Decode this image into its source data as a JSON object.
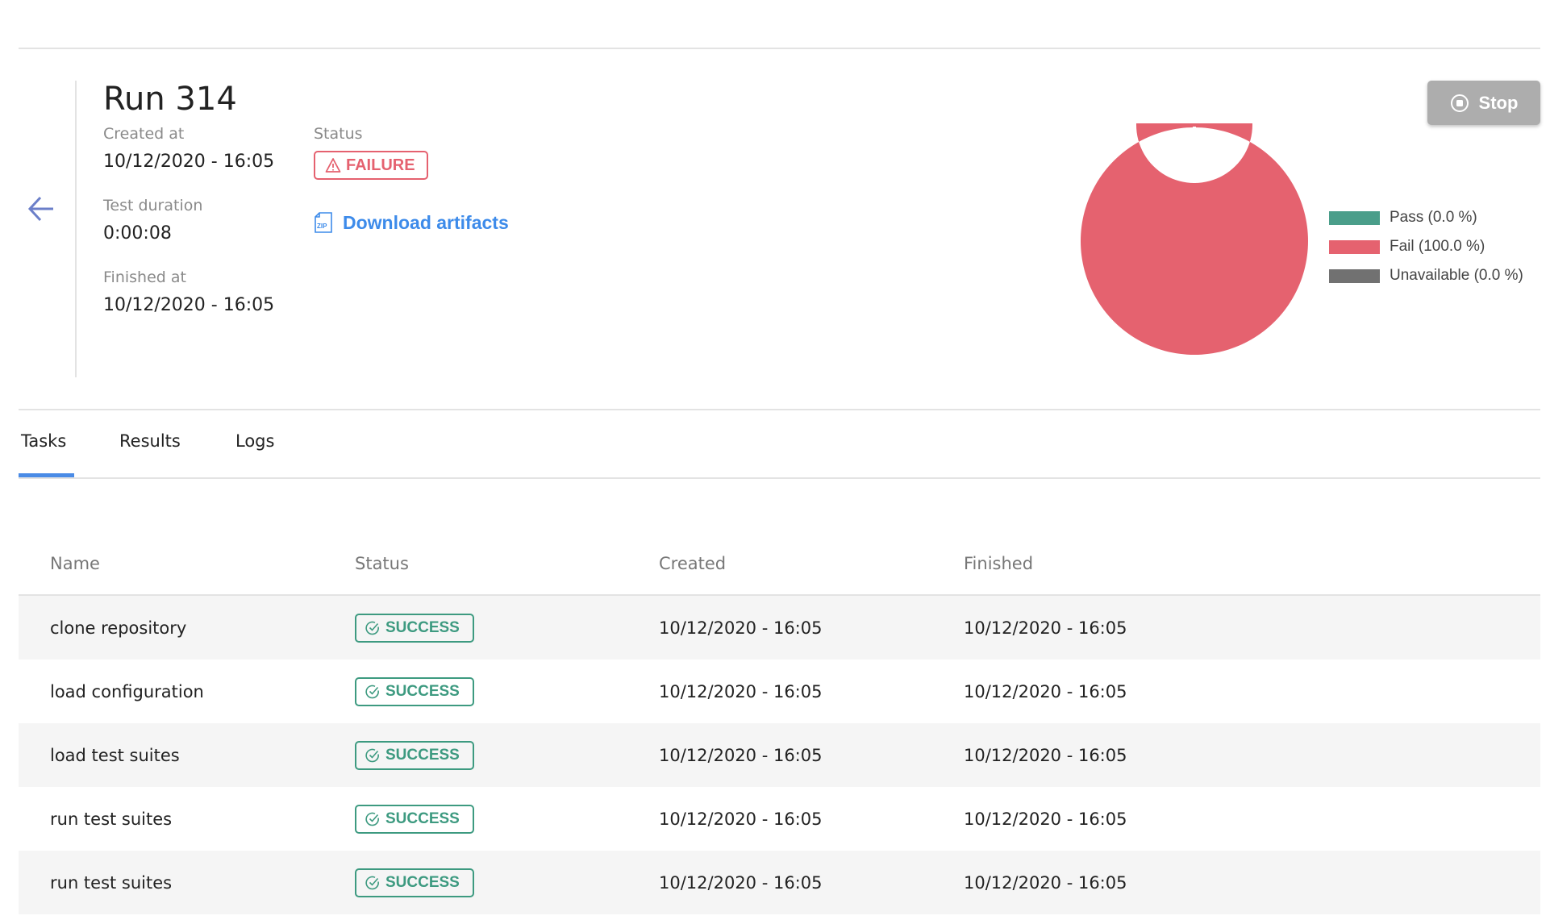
{
  "run": {
    "title": "Run 314",
    "created_label": "Created at",
    "created": "10/12/2020 - 16:05",
    "duration_label": "Test duration",
    "duration": "0:00:08",
    "finished_label": "Finished at",
    "finished": "10/12/2020 - 16:05",
    "status_label": "Status",
    "status": "FAILURE",
    "download": "Download artifacts",
    "stop": "Stop"
  },
  "chart_data": {
    "type": "pie",
    "variant": "donut",
    "legend_position": "right",
    "categories": [
      "Pass (0.0 %)",
      "Fail (100.0 %)",
      "Unavailable (0.0 %)"
    ],
    "values": [
      0.0,
      100.0,
      0.0
    ],
    "colors": [
      "#4a9e8a",
      "#e5626f",
      "#717171"
    ]
  },
  "tabs": [
    {
      "label": "Tasks",
      "active": true
    },
    {
      "label": "Results"
    },
    {
      "label": "Logs"
    }
  ],
  "table": {
    "headers": [
      "Name",
      "Status",
      "Created",
      "Finished"
    ],
    "rows": [
      {
        "name": "clone repository",
        "status": "SUCCESS",
        "created": "10/12/2020 - 16:05",
        "finished": "10/12/2020 - 16:05"
      },
      {
        "name": "load configuration",
        "status": "SUCCESS",
        "created": "10/12/2020 - 16:05",
        "finished": "10/12/2020 - 16:05"
      },
      {
        "name": "load test suites",
        "status": "SUCCESS",
        "created": "10/12/2020 - 16:05",
        "finished": "10/12/2020 - 16:05"
      },
      {
        "name": "run test suites",
        "status": "SUCCESS",
        "created": "10/12/2020 - 16:05",
        "finished": "10/12/2020 - 16:05"
      },
      {
        "name": "run test suites",
        "status": "SUCCESS",
        "created": "10/12/2020 - 16:05",
        "finished": "10/12/2020 - 16:05"
      }
    ]
  }
}
